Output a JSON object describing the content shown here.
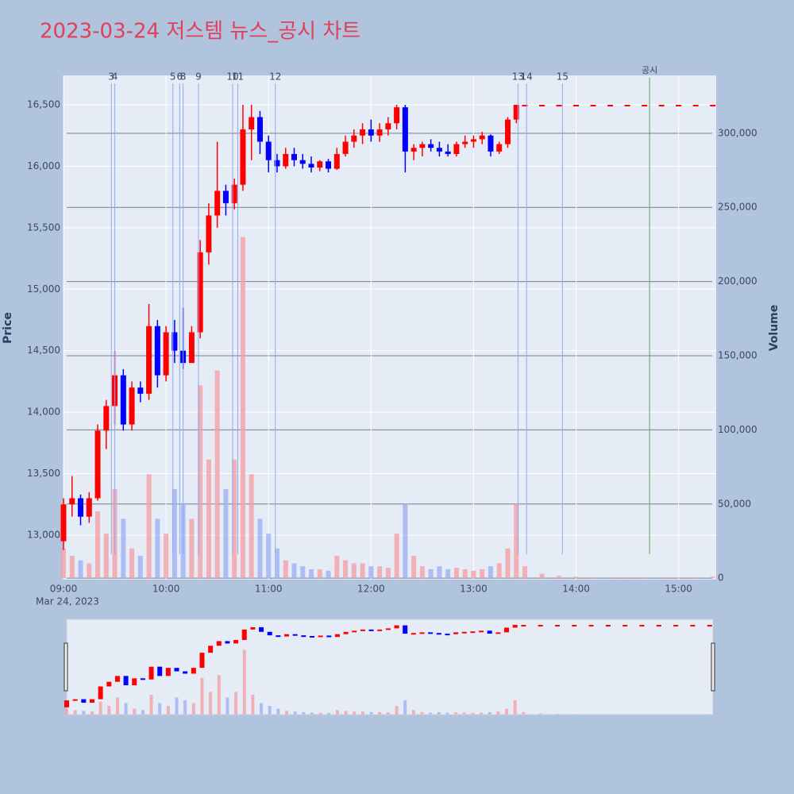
{
  "chart_data": {
    "type": "candlestick",
    "title": "2023-03-24 저스템 뉴스_공시 차트",
    "ylabel": "Price",
    "y2label": "Volume",
    "xlim": [
      "09:00",
      "15:22"
    ],
    "xticks": [
      "09:00",
      "10:00",
      "11:00",
      "12:00",
      "13:00",
      "14:00",
      "15:00"
    ],
    "x_date_label": "Mar 24, 2023",
    "ylim": [
      12638,
      16739
    ],
    "yticks": [
      {
        "value": 13000,
        "label": "13,000"
      },
      {
        "value": 13500,
        "label": "13,500"
      },
      {
        "value": 14000,
        "label": "14,000"
      },
      {
        "value": 14500,
        "label": "14,500"
      },
      {
        "value": 15000,
        "label": "15,000"
      },
      {
        "value": 15500,
        "label": "15,500"
      },
      {
        "value": 16000,
        "label": "16,000"
      },
      {
        "value": 16500,
        "label": "16,500"
      }
    ],
    "y2lim": [
      -1000,
      339000
    ],
    "y2ticks": [
      0,
      {
        "value": 50000,
        "label": "50,000"
      },
      {
        "value": 100000,
        "label": "100,000"
      },
      {
        "value": 150000,
        "label": "150,000"
      },
      {
        "value": 200000,
        "label": "200,000"
      },
      {
        "value": 250000,
        "label": "250,000"
      },
      {
        "value": 300000,
        "label": "300,000"
      }
    ],
    "up_color": "#ff0000",
    "down_color": "#0000ff",
    "up_volume_color": "#f4a0a8",
    "down_volume_color": "#a0b0f4",
    "news_color": "#8fa8f0",
    "disclosure_color": "#60a060",
    "news": [
      {
        "label": "3",
        "x": "09:28"
      },
      {
        "label": "4",
        "x": "09:30"
      },
      {
        "label": "5",
        "x": "10:04"
      },
      {
        "label": "6",
        "x": "10:08"
      },
      {
        "label": "8",
        "x": "10:10"
      },
      {
        "label": "9",
        "x": "10:19"
      },
      {
        "label": "10",
        "x": "10:39"
      },
      {
        "label": "11",
        "x": "10:42"
      },
      {
        "label": "12",
        "x": "11:04"
      },
      {
        "label": "13",
        "x": "13:26"
      },
      {
        "label": "14",
        "x": "13:31"
      },
      {
        "label": "15",
        "x": "13:52"
      }
    ],
    "disclosures": [
      {
        "label": "공시",
        "x": "14:43"
      }
    ],
    "candles": {
      "x": [
        "09:00",
        "09:05",
        "09:10",
        "09:15",
        "09:20",
        "09:25",
        "09:30",
        "09:35",
        "09:40",
        "09:45",
        "09:50",
        "09:55",
        "10:00",
        "10:05",
        "10:10",
        "10:15",
        "10:20",
        "10:25",
        "10:30",
        "10:35",
        "10:40",
        "10:45",
        "10:50",
        "10:55",
        "11:00",
        "11:05",
        "11:10",
        "11:15",
        "11:20",
        "11:25",
        "11:30",
        "11:35",
        "11:40",
        "11:45",
        "11:50",
        "11:55",
        "12:00",
        "12:05",
        "12:10",
        "12:15",
        "12:20",
        "12:25",
        "12:30",
        "12:35",
        "12:40",
        "12:45",
        "12:50",
        "12:55",
        "13:00",
        "13:05",
        "13:10",
        "13:15",
        "13:20",
        "13:25",
        "13:30",
        "13:40",
        "13:50",
        "14:00",
        "14:10",
        "14:20",
        "14:30",
        "14:40",
        "14:50",
        "15:00",
        "15:10",
        "15:20"
      ],
      "open": [
        12950,
        13250,
        13300,
        13150,
        13300,
        13850,
        14050,
        14300,
        13900,
        14200,
        14150,
        14700,
        14300,
        14650,
        14500,
        14400,
        14650,
        15300,
        15600,
        15800,
        15700,
        15850,
        16300,
        16400,
        16200,
        16050,
        16000,
        16100,
        16050,
        16020,
        15990,
        16040,
        15980,
        16100,
        16200,
        16250,
        16300,
        16250,
        16300,
        16350,
        16480,
        16120,
        16150,
        16180,
        16150,
        16120,
        16100,
        16180,
        16200,
        16220,
        16250,
        16120,
        16180,
        16380,
        16500,
        16500,
        16500,
        16500,
        16500,
        16500,
        16500,
        16500,
        16500,
        16500,
        16500,
        16500
      ],
      "high": [
        13300,
        13480,
        13330,
        13350,
        13900,
        14100,
        14500,
        14350,
        14250,
        14250,
        14880,
        14750,
        14700,
        14750,
        14850,
        14700,
        15400,
        15700,
        16200,
        15850,
        15900,
        16500,
        16500,
        16450,
        16250,
        16100,
        16150,
        16150,
        16100,
        16080,
        16050,
        16060,
        16150,
        16250,
        16300,
        16350,
        16380,
        16350,
        16400,
        16500,
        16500,
        16180,
        16200,
        16220,
        16200,
        16180,
        16200,
        16250,
        16250,
        16280,
        16260,
        16200,
        16400,
        16500,
        16500,
        16500,
        16500,
        16500,
        16500,
        16500,
        16500,
        16500,
        16500,
        16500,
        16500,
        16500
      ],
      "low": [
        12880,
        13150,
        13080,
        13100,
        13280,
        13700,
        13900,
        13850,
        13850,
        14080,
        14100,
        14200,
        14250,
        14400,
        14350,
        14400,
        14600,
        15200,
        15500,
        15600,
        15650,
        15800,
        16050,
        16100,
        15950,
        15950,
        15980,
        16000,
        15980,
        15950,
        15960,
        15950,
        15970,
        16080,
        16150,
        16180,
        16200,
        16200,
        16250,
        16300,
        15950,
        16050,
        16080,
        16120,
        16080,
        16080,
        16080,
        16150,
        16150,
        16180,
        16080,
        16100,
        16150,
        16350,
        16500,
        16500,
        16500,
        16500,
        16500,
        16500,
        16500,
        16500,
        16500,
        16500,
        16500,
        16500
      ],
      "close": [
        13250,
        13300,
        13150,
        13300,
        13850,
        14050,
        14300,
        13900,
        14200,
        14150,
        14700,
        14300,
        14650,
        14500,
        14400,
        14650,
        15300,
        15600,
        15800,
        15700,
        15850,
        16300,
        16400,
        16200,
        16050,
        16000,
        16100,
        16050,
        16020,
        15990,
        16040,
        15980,
        16100,
        16200,
        16250,
        16300,
        16250,
        16300,
        16350,
        16480,
        16120,
        16150,
        16180,
        16150,
        16120,
        16100,
        16180,
        16200,
        16220,
        16250,
        16120,
        16180,
        16380,
        16500,
        16500,
        16500,
        16500,
        16500,
        16500,
        16500,
        16500,
        16500,
        16500,
        16500,
        16500,
        16500
      ],
      "volume": [
        20000,
        15000,
        12000,
        10000,
        45000,
        30000,
        60000,
        40000,
        20000,
        15000,
        70000,
        40000,
        30000,
        60000,
        50000,
        40000,
        130000,
        80000,
        140000,
        60000,
        80000,
        230000,
        70000,
        40000,
        30000,
        20000,
        12000,
        10000,
        8000,
        6000,
        6000,
        5000,
        15000,
        12000,
        10000,
        10000,
        8000,
        8000,
        7000,
        30000,
        50000,
        15000,
        8000,
        6000,
        8000,
        6000,
        7000,
        6000,
        5000,
        6000,
        8000,
        10000,
        20000,
        50000,
        8000,
        3000,
        1500,
        1000,
        500,
        500,
        500,
        500,
        500,
        500,
        500,
        1000
      ]
    }
  }
}
